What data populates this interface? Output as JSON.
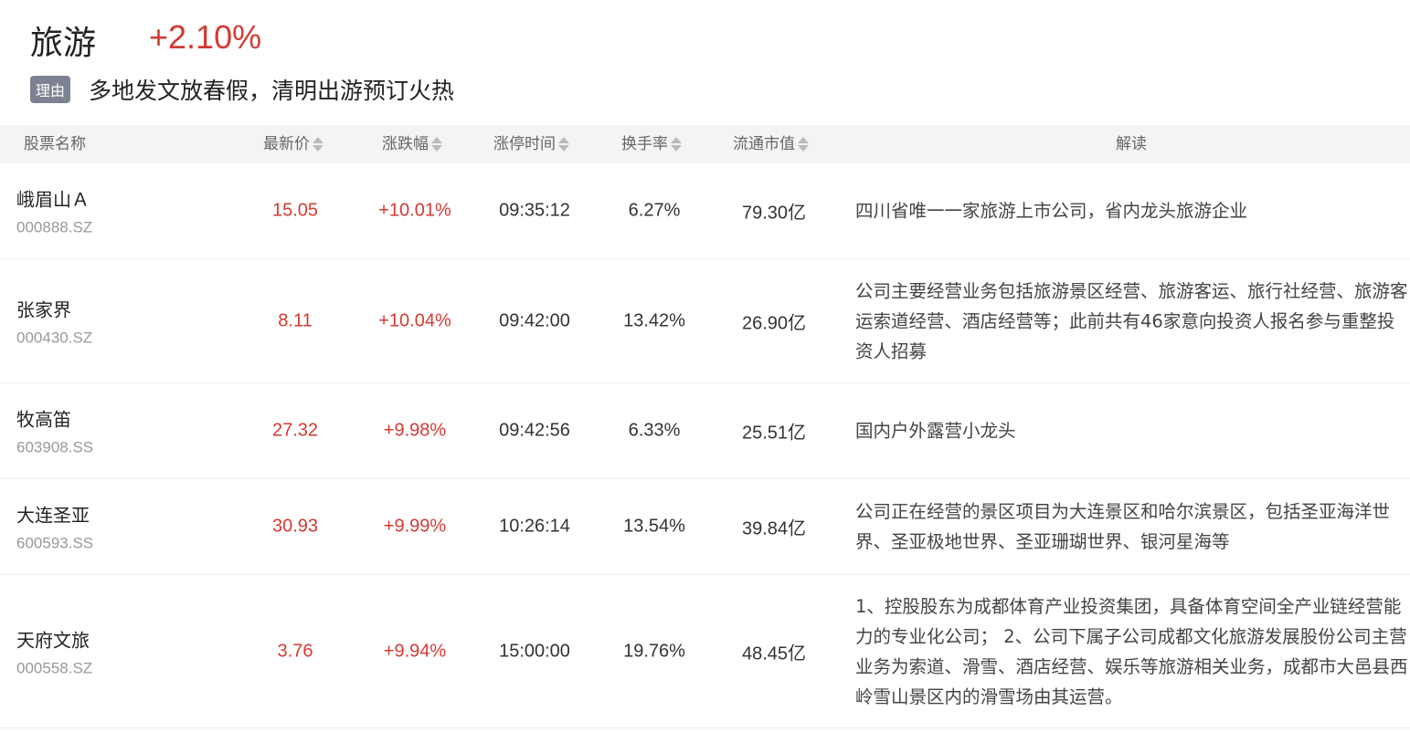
{
  "header": {
    "title": "旅游",
    "change": "+2.10%",
    "reason_tag": "理由",
    "reason": "多地发文放春假，清明出游预订火热"
  },
  "columns": [
    "股票名称",
    "最新价",
    "涨跌幅",
    "涨停时间",
    "换手率",
    "流通市值",
    "解读"
  ],
  "colors": {
    "up": "#d33a31",
    "tag": "#7d8292"
  },
  "rows": [
    {
      "name": "峨眉山Ａ",
      "code": "000888.SZ",
      "price": "15.05",
      "change": "+10.01%",
      "time": "09:35:12",
      "turnover": "6.27%",
      "mcap": "79.30亿",
      "desc": "四川省唯一一家旅游上市公司，省内龙头旅游企业"
    },
    {
      "name": "张家界",
      "code": "000430.SZ",
      "price": "8.11",
      "change": "+10.04%",
      "time": "09:42:00",
      "turnover": "13.42%",
      "mcap": "26.90亿",
      "desc": "公司主要经营业务包括旅游景区经营、旅游客运、旅行社经营、旅游客运索道经营、酒店经营等；此前共有46家意向投资人报名参与重整投资人招募"
    },
    {
      "name": "牧高笛",
      "code": "603908.SS",
      "price": "27.32",
      "change": "+9.98%",
      "time": "09:42:56",
      "turnover": "6.33%",
      "mcap": "25.51亿",
      "desc": "国内户外露营小龙头"
    },
    {
      "name": "大连圣亚",
      "code": "600593.SS",
      "price": "30.93",
      "change": "+9.99%",
      "time": "10:26:14",
      "turnover": "13.54%",
      "mcap": "39.84亿",
      "desc": "公司正在经营的景区项目为大连景区和哈尔滨景区，包括圣亚海洋世界、圣亚极地世界、圣亚珊瑚世界、银河星海等"
    },
    {
      "name": "天府文旅",
      "code": "000558.SZ",
      "price": "3.76",
      "change": "+9.94%",
      "time": "15:00:00",
      "turnover": "19.76%",
      "mcap": "48.45亿",
      "desc": "1、控股股东为成都体育产业投资集团，具备体育空间全产业链经营能力的专业化公司； 2、公司下属子公司成都文化旅游发展股份公司主营业务为索道、滑雪、酒店经营、娱乐等旅游相关业务，成都市大邑县西岭雪山景区内的滑雪场由其运营。"
    }
  ]
}
